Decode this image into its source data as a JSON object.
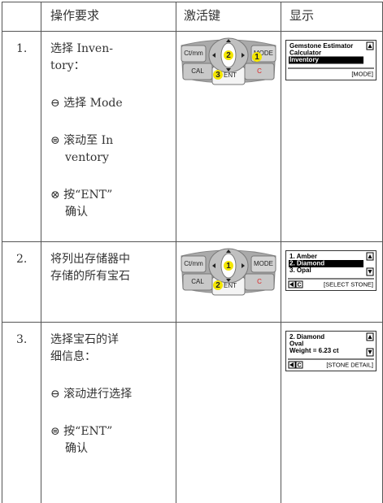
{
  "table": {
    "header": [
      "",
      "操作要求",
      "激活键",
      "显示"
    ],
    "rows": [
      {
        "number": "1.",
        "instruction": [
          [
            "选择 Inven-",
            "tory："
          ],
          [
            "⊖ 选择 Mode"
          ],
          [
            "⊜ 滚动至 In",
            "ventory"
          ],
          [
            "⊗ 按“ENT”",
            "确认"
          ]
        ],
        "keypad": {
          "ctmm": "Ct/mm",
          "mode": "MODE",
          "cal": "CAL",
          "ent": "ENT",
          "c": "C",
          "nav_marker": "2",
          "mode_marker": "1",
          "ent_marker": "3"
        },
        "display": {
          "lines": [
            {
              "text": "Gemstone Estimator",
              "selected": false
            },
            {
              "text": "Calculator",
              "selected": false
            },
            {
              "text": "Inventory",
              "selected": true
            }
          ],
          "footer": "[MODE]",
          "back_icons": false,
          "back_c": "",
          "scroll_down": false
        }
      },
      {
        "number": "2.",
        "instruction": [
          [
            "将列出存储器中",
            "存储的所有宝石"
          ]
        ],
        "keypad": {
          "ctmm": "Ct/mm",
          "mode": "MODE",
          "cal": "CAL",
          "ent": "ENT",
          "c": "C",
          "nav_marker": "1",
          "ent_marker": "2"
        },
        "display": {
          "lines": [
            {
              "text": "1. Amber",
              "selected": false
            },
            {
              "text": "2. Diamond",
              "selected": true
            },
            {
              "text": "3. Opal",
              "selected": false
            }
          ],
          "footer": "[SELECT STONE]",
          "back_icons": true,
          "back_c": "C",
          "scroll_down": true
        }
      },
      {
        "number": "3.",
        "instruction": [
          [
            "选择宝石的详",
            "细信息："
          ],
          [
            "⊖ 滚动进行选择"
          ],
          [
            "⊜ 按“ENT”",
            "确认"
          ]
        ],
        "display": {
          "lines": [
            {
              "text": "2. Diamond",
              "selected": false
            },
            {
              "text": "Oval",
              "selected": false
            },
            {
              "text": "Weight = 6.23 ct",
              "selected": false
            }
          ],
          "footer": "[STONE DETAIL]",
          "back_icons": true,
          "back_c": "C",
          "scroll_down": true
        }
      }
    ]
  }
}
